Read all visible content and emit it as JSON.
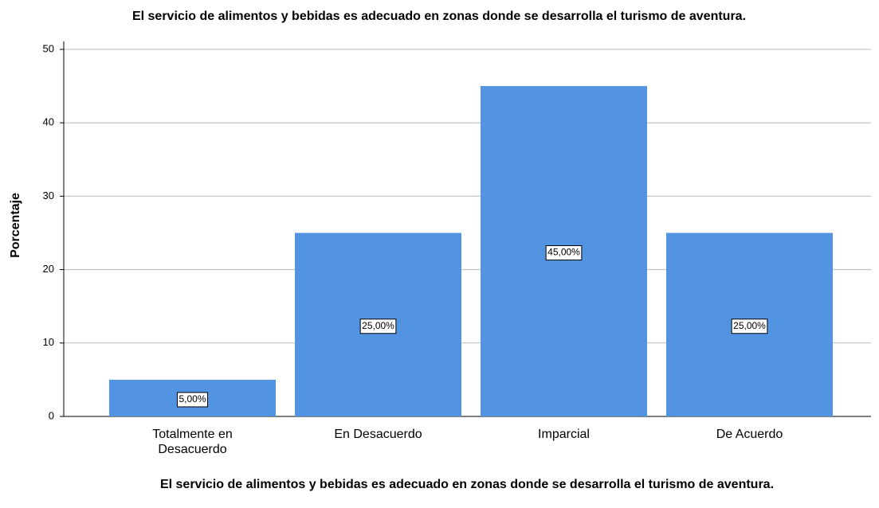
{
  "chart_data": {
    "type": "bar",
    "title": "El servicio de alimentos y bebidas es adecuado en zonas donde se desarrolla el turismo de aventura.",
    "xlabel": "El servicio de alimentos y bebidas es adecuado en zonas donde se desarrolla el turismo de aventura.",
    "ylabel": "Porcentaje",
    "categories": [
      "Totalmente en Desacuerdo",
      "En Desacuerdo",
      "Imparcial",
      "De Acuerdo"
    ],
    "values": [
      5,
      25,
      45,
      25
    ],
    "value_labels": [
      "5,00%",
      "25,00%",
      "45,00%",
      "25,00%"
    ],
    "color": "#5294e2",
    "ylim": [
      0,
      50
    ],
    "yticks": [
      0,
      10,
      20,
      30,
      40,
      50
    ],
    "grid": true
  }
}
